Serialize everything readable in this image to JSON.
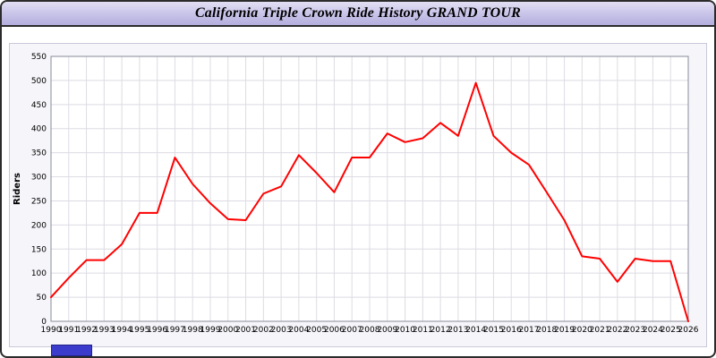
{
  "window": {
    "title": "California Triple Crown Ride History GRAND TOUR"
  },
  "colors": {
    "line": "#ff0000",
    "grid": "#dcdce4",
    "plot_bg": "#ffffff",
    "axis": "#8a8a9a",
    "tick_text": "#000000"
  },
  "chart_data": {
    "type": "line",
    "title": "California Triple Crown Ride History GRAND TOUR",
    "xlabel": "",
    "ylabel": "Riders",
    "ylim": [
      0,
      550
    ],
    "ytick_step": 50,
    "grid": true,
    "legend_position": "none",
    "x": [
      1990,
      1991,
      1992,
      1993,
      1994,
      1995,
      1996,
      1997,
      1998,
      1999,
      2000,
      2001,
      2002,
      2003,
      2004,
      2005,
      2006,
      2007,
      2008,
      2009,
      2010,
      2011,
      2012,
      2013,
      2014,
      2015,
      2016,
      2017,
      2018,
      2019,
      2020,
      2021,
      2022,
      2023,
      2024,
      2025,
      2026
    ],
    "series": [
      {
        "name": "Riders",
        "color": "#ff0000",
        "values": [
          50,
          90,
          127,
          127,
          160,
          225,
          225,
          340,
          285,
          245,
          212,
          210,
          265,
          280,
          345,
          308,
          268,
          340,
          340,
          390,
          372,
          380,
          412,
          385,
          495,
          385,
          350,
          325,
          268,
          210,
          135,
          130,
          82,
          130,
          125,
          125,
          0
        ]
      }
    ]
  }
}
